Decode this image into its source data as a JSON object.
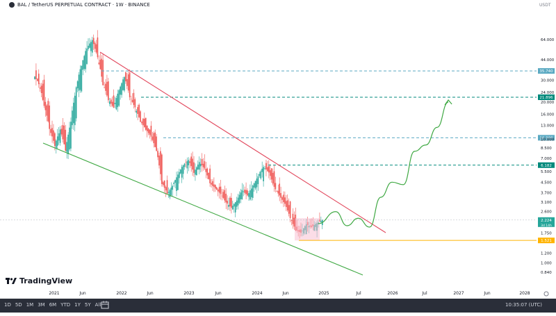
{
  "header": {
    "symbol": "BAL / TetherUS PERPETUAL CONTRACT · 1W · BINANCE",
    "currency": "USDT"
  },
  "logo_text": "TradingView",
  "bottom_bar": {
    "timeframes": [
      "1D",
      "5D",
      "1M",
      "3M",
      "6M",
      "YTD",
      "1Y",
      "5Y",
      "All"
    ],
    "clock": "10:35:07 (UTC)"
  },
  "colors": {
    "up": "#26a69a",
    "down": "#ef5350",
    "resistance_line": "#e2485d",
    "support_line": "#3ea842",
    "horizontal_level": "#5aa9c2",
    "dark_level": "#00897b",
    "support_level": "#ffb300",
    "current_price": "#26a69a"
  },
  "chart_data": {
    "type": "candlestick",
    "y_scale": "log",
    "ylim": [
      0.7,
      100
    ],
    "y_ticks": [
      "64.000",
      "44.000",
      "30.000",
      "24.000",
      "20.000",
      "16.000",
      "13.000",
      "10.000",
      "8.500",
      "7.000",
      "5.500",
      "4.500",
      "3.700",
      "3.100",
      "2.600",
      "1.750",
      "1.200",
      "1.000",
      "0.840"
    ],
    "x_ticks": [
      "2021",
      "Jun",
      "2022",
      "Jun",
      "2023",
      "Jun",
      "2024",
      "Jun",
      "2025",
      "Jul",
      "2026",
      "Jul",
      "2027",
      "Jun",
      "2028"
    ],
    "x_range": [
      "2020-10",
      "2028-03"
    ],
    "price_levels": [
      {
        "label": "35.740",
        "value": 35.74
      },
      {
        "label": "21.896",
        "value": 21.896
      },
      {
        "label": "10.300",
        "value": 10.3
      },
      {
        "label": "6.182",
        "value": 6.182
      },
      {
        "label": "1.521",
        "value": 1.521
      }
    ],
    "current_price": {
      "label": "2.224",
      "value": 2.224,
      "countdown": "3d 14h"
    },
    "series": [
      {
        "values_close": [
          28,
          19,
          12,
          9,
          12,
          8,
          14,
          26,
          40,
          55,
          64,
          45,
          28,
          21,
          18,
          25,
          32,
          22,
          18,
          14,
          12,
          10.5,
          8,
          4.5,
          3.6,
          4.2,
          5.2,
          6.2,
          6.8,
          5.4,
          6.5,
          5.8,
          4.4,
          4.0,
          3.6,
          3.1,
          2.8,
          3.2,
          3.9,
          3.5,
          4.2,
          5.0,
          6.0,
          5.4,
          4.1,
          3.5,
          3.0,
          2.3,
          1.85,
          1.75,
          2.05,
          1.95,
          2.1,
          2.22
        ]
      }
    ],
    "projection": [
      {
        "date": "2025-01",
        "value": 2.6
      },
      {
        "date": "2025-03",
        "value": 2.0
      },
      {
        "date": "2025-05",
        "value": 2.3
      },
      {
        "date": "2025-07",
        "value": 1.95
      },
      {
        "date": "2025-09",
        "value": 3.4
      },
      {
        "date": "2025-11",
        "value": 4.5
      },
      {
        "date": "2026-01",
        "value": 4.3
      },
      {
        "date": "2026-03",
        "value": 8.0
      },
      {
        "date": "2026-05",
        "value": 9.0
      },
      {
        "date": "2026-07",
        "value": 12.5
      },
      {
        "date": "2026-09",
        "value": 20.0
      }
    ]
  }
}
